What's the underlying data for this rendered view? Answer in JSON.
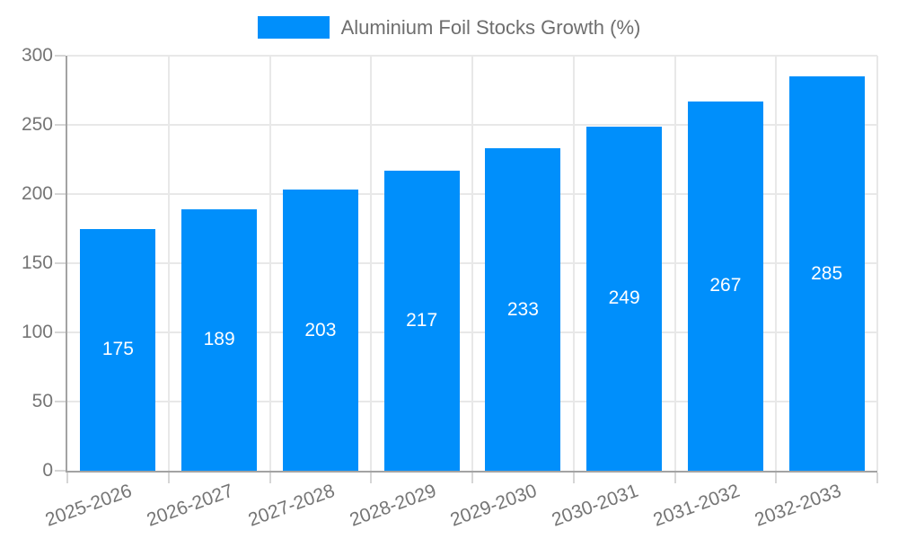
{
  "chart_data": {
    "type": "bar",
    "title": "",
    "legend": {
      "position": "top-center",
      "label": "Aluminium Foil Stocks Growth (%)"
    },
    "categories": [
      "2025-2026",
      "2026-2027",
      "2027-2028",
      "2028-2029",
      "2029-2030",
      "2030-2031",
      "2031-2032",
      "2032-2033"
    ],
    "series": [
      {
        "name": "Aluminium Foil Stocks Growth (%)",
        "values": [
          175,
          189,
          203,
          217,
          233,
          249,
          267,
          285
        ]
      }
    ],
    "xlabel": "",
    "ylabel": "",
    "ylim": [
      0,
      300
    ],
    "yticks": [
      0,
      50,
      100,
      150,
      200,
      250,
      300
    ],
    "grid": {
      "horizontal": true,
      "vertical": true
    },
    "value_labels": {
      "position": "inside-center",
      "color": "#ffffff"
    },
    "colors": {
      "bar": "#008FFB",
      "grid": "#e8e8e8",
      "axis": "#a3a3a3",
      "tick": "#d6d6d6",
      "axis_label": "#757575",
      "legend_text": "#6e6e6e",
      "background": "#ffffff"
    }
  }
}
